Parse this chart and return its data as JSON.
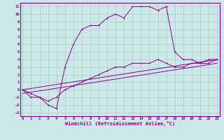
{
  "title": "",
  "xlabel": "Windchill (Refroidissement éolien,°C)",
  "ylabel": "",
  "background_color": "#cde8e8",
  "line_color": "#880088",
  "grid_color": "#aacccc",
  "x_ticks": [
    0,
    1,
    2,
    3,
    4,
    5,
    6,
    7,
    8,
    9,
    10,
    11,
    12,
    13,
    14,
    15,
    16,
    17,
    18,
    19,
    20,
    21,
    22,
    23
  ],
  "y_ticks": [
    -3,
    -2,
    -1,
    0,
    1,
    2,
    3,
    4,
    5,
    6,
    7,
    8,
    9,
    10,
    11
  ],
  "xlim": [
    -0.3,
    23.3
  ],
  "ylim": [
    -3.5,
    11.5
  ],
  "series1_x": [
    0,
    1,
    2,
    3,
    4,
    5,
    6,
    7,
    8,
    9,
    10,
    11,
    12,
    13,
    14,
    15,
    16,
    17,
    18,
    19,
    20,
    21,
    22,
    23
  ],
  "series1_y": [
    0,
    -1,
    -1,
    -2,
    -2.5,
    3,
    6,
    8,
    8.5,
    8.5,
    9.5,
    10,
    9.5,
    11,
    11,
    11,
    10.5,
    11,
    5,
    4,
    4,
    3.5,
    3.5,
    4
  ],
  "series2_x": [
    0,
    1,
    2,
    3,
    4,
    5,
    6,
    7,
    8,
    9,
    10,
    11,
    12,
    13,
    14,
    15,
    16,
    17,
    18,
    19,
    20,
    21,
    22,
    23
  ],
  "series2_y": [
    0,
    -0.5,
    -1,
    -1.5,
    -1,
    0,
    0.5,
    1,
    1.5,
    2,
    2.5,
    3,
    3,
    3.5,
    3.5,
    3.5,
    4,
    3.5,
    3,
    3,
    3.5,
    3.5,
    4,
    4
  ],
  "series3_x": [
    0,
    23
  ],
  "series3_y": [
    0,
    4
  ],
  "series4_x": [
    0,
    23
  ],
  "series4_y": [
    -0.5,
    3.5
  ]
}
